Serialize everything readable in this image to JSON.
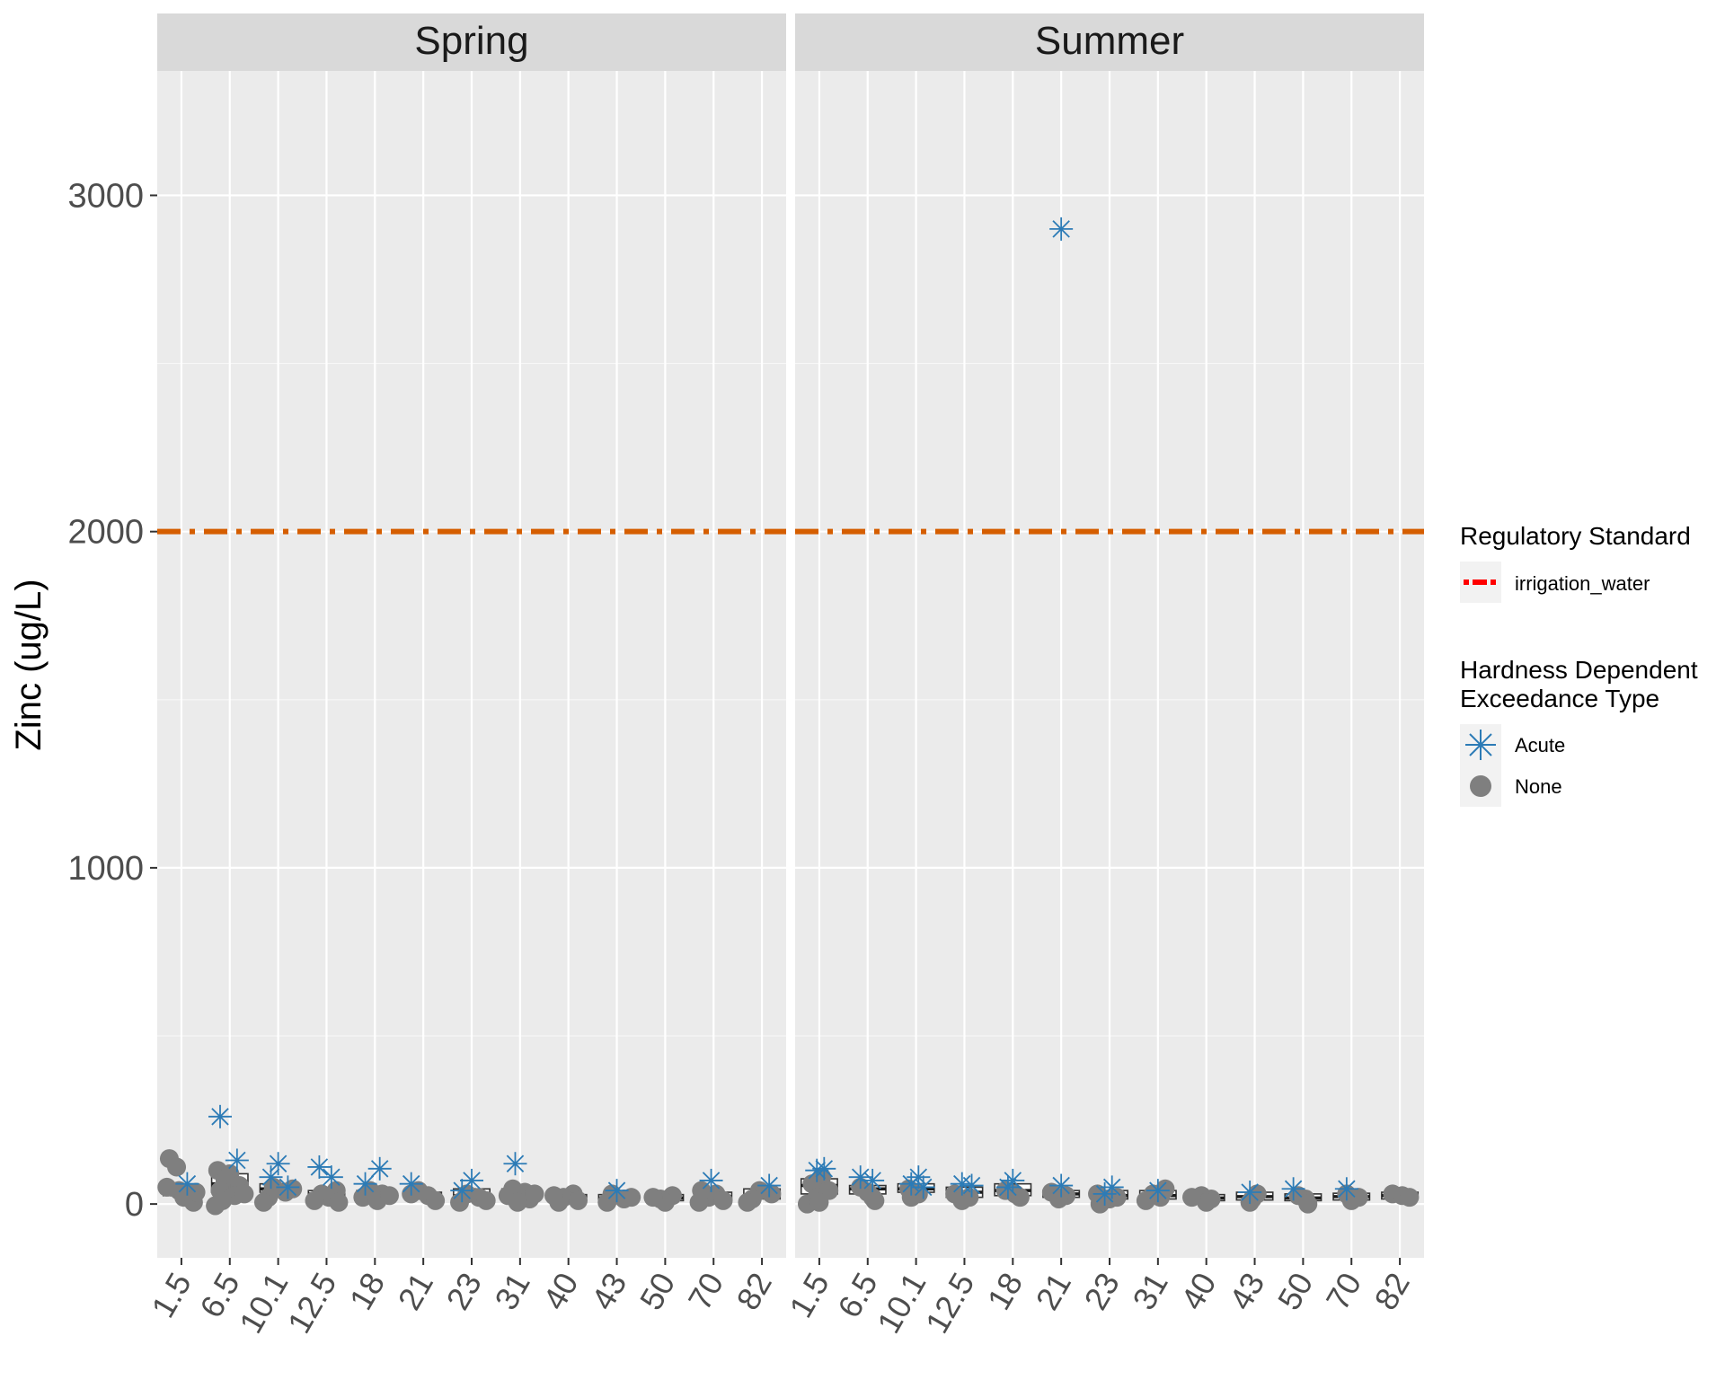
{
  "chart_data": {
    "type": "boxplot-jitter-faceted",
    "ylabel": "Zinc (ug/L)",
    "ylim": [
      -160,
      3370
    ],
    "yticks": [
      0,
      1000,
      2000,
      3000
    ],
    "categories": [
      "1.5",
      "6.5",
      "10.1",
      "12.5",
      "18",
      "21",
      "23",
      "31",
      "40",
      "43",
      "50",
      "70",
      "82"
    ],
    "reference_line": {
      "value": 2000,
      "name": "irrigation_water",
      "color": "#D55E00"
    },
    "colors": {
      "acute": "#2C7BB6",
      "none": "#7F7F7F",
      "panel_bg": "#EBEBEB",
      "strip_bg": "#D9D9D9",
      "grid": "#FFFFFF",
      "legend_line": "#FF0000"
    },
    "legend": {
      "reference_title": "Regulatory Standard",
      "reference_label": "irrigation_water",
      "type_title_line1": "Hardness Dependent",
      "type_title_line2": "Exceedance Type",
      "acute_label": "Acute",
      "none_label": "None"
    },
    "facets": [
      {
        "name": "Spring",
        "boxes": [
          {
            "cat": "1.5",
            "q1": 25,
            "median": 40,
            "q3": 55
          },
          {
            "cat": "6.5",
            "q1": 35,
            "median": 60,
            "q3": 90
          },
          {
            "cat": "10.1",
            "q1": 35,
            "median": 45,
            "q3": 60
          },
          {
            "cat": "12.5",
            "q1": 20,
            "median": 30,
            "q3": 40
          },
          {
            "cat": "18",
            "q1": 18,
            "median": 28,
            "q3": 40
          },
          {
            "cat": "21",
            "q1": 15,
            "median": 25,
            "q3": 35
          },
          {
            "cat": "23",
            "q1": 10,
            "median": 25,
            "q3": 45
          },
          {
            "cat": "31",
            "q1": 15,
            "median": 25,
            "q3": 45
          },
          {
            "cat": "40",
            "q1": 10,
            "median": 18,
            "q3": 28
          },
          {
            "cat": "43",
            "q1": 10,
            "median": 18,
            "q3": 28
          },
          {
            "cat": "50",
            "q1": 10,
            "median": 18,
            "q3": 28
          },
          {
            "cat": "70",
            "q1": 12,
            "median": 22,
            "q3": 35
          },
          {
            "cat": "82",
            "q1": 15,
            "median": 25,
            "q3": 45
          }
        ],
        "acute_points": [
          {
            "cat": "1.5",
            "y": 60,
            "dx": 0.12
          },
          {
            "cat": "6.5",
            "y": 260,
            "dx": -0.2
          },
          {
            "cat": "6.5",
            "y": 130,
            "dx": 0.15
          },
          {
            "cat": "10.1",
            "y": 120,
            "dx": 0.0
          },
          {
            "cat": "10.1",
            "y": 80,
            "dx": -0.15
          },
          {
            "cat": "10.1",
            "y": 50,
            "dx": 0.2
          },
          {
            "cat": "12.5",
            "y": 110,
            "dx": -0.15
          },
          {
            "cat": "12.5",
            "y": 80,
            "dx": 0.1
          },
          {
            "cat": "18",
            "y": 60,
            "dx": -0.2
          },
          {
            "cat": "18",
            "y": 105,
            "dx": 0.1
          },
          {
            "cat": "21",
            "y": 60,
            "dx": -0.25
          },
          {
            "cat": "23",
            "y": 70,
            "dx": 0.0
          },
          {
            "cat": "23",
            "y": 40,
            "dx": -0.2
          },
          {
            "cat": "31",
            "y": 120,
            "dx": -0.1
          },
          {
            "cat": "43",
            "y": 40,
            "dx": 0.0
          },
          {
            "cat": "70",
            "y": 70,
            "dx": -0.05
          },
          {
            "cat": "82",
            "y": 55,
            "dx": 0.15
          }
        ],
        "none_points": [
          {
            "cat": "1.5",
            "y": 135,
            "dx": -0.25
          },
          {
            "cat": "1.5",
            "y": 110,
            "dx": -0.1
          },
          {
            "cat": "1.5",
            "y": 50,
            "dx": -0.3
          },
          {
            "cat": "1.5",
            "y": 40,
            "dx": -0.05
          },
          {
            "cat": "1.5",
            "y": 30,
            "dx": 0.15
          },
          {
            "cat": "1.5",
            "y": 20,
            "dx": 0.05
          },
          {
            "cat": "1.5",
            "y": 5,
            "dx": 0.25
          },
          {
            "cat": "1.5",
            "y": 35,
            "dx": 0.3
          },
          {
            "cat": "6.5",
            "y": 100,
            "dx": -0.25
          },
          {
            "cat": "6.5",
            "y": 90,
            "dx": 0.0
          },
          {
            "cat": "6.5",
            "y": 70,
            "dx": -0.1
          },
          {
            "cat": "6.5",
            "y": 55,
            "dx": 0.2
          },
          {
            "cat": "6.5",
            "y": 40,
            "dx": -0.2
          },
          {
            "cat": "6.5",
            "y": 25,
            "dx": 0.1
          },
          {
            "cat": "6.5",
            "y": 10,
            "dx": -0.15
          },
          {
            "cat": "6.5",
            "y": -5,
            "dx": -0.3
          },
          {
            "cat": "6.5",
            "y": 30,
            "dx": 0.3
          },
          {
            "cat": "10.1",
            "y": 50,
            "dx": -0.1
          },
          {
            "cat": "10.1",
            "y": 35,
            "dx": 0.15
          },
          {
            "cat": "10.1",
            "y": 20,
            "dx": -0.2
          },
          {
            "cat": "10.1",
            "y": 5,
            "dx": -0.3
          },
          {
            "cat": "10.1",
            "y": 45,
            "dx": 0.3
          },
          {
            "cat": "12.5",
            "y": 40,
            "dx": 0.2
          },
          {
            "cat": "12.5",
            "y": 30,
            "dx": -0.1
          },
          {
            "cat": "12.5",
            "y": 20,
            "dx": 0.05
          },
          {
            "cat": "12.5",
            "y": 10,
            "dx": -0.25
          },
          {
            "cat": "12.5",
            "y": 5,
            "dx": 0.25
          },
          {
            "cat": "18",
            "y": 40,
            "dx": -0.1
          },
          {
            "cat": "18",
            "y": 30,
            "dx": 0.15
          },
          {
            "cat": "18",
            "y": 20,
            "dx": -0.25
          },
          {
            "cat": "18",
            "y": 10,
            "dx": 0.05
          },
          {
            "cat": "18",
            "y": 25,
            "dx": 0.3
          },
          {
            "cat": "21",
            "y": 40,
            "dx": -0.1
          },
          {
            "cat": "21",
            "y": 25,
            "dx": 0.1
          },
          {
            "cat": "21",
            "y": 10,
            "dx": 0.25
          },
          {
            "cat": "21",
            "y": 30,
            "dx": -0.25
          },
          {
            "cat": "23",
            "y": 30,
            "dx": -0.1
          },
          {
            "cat": "23",
            "y": 20,
            "dx": 0.15
          },
          {
            "cat": "23",
            "y": 5,
            "dx": -0.25
          },
          {
            "cat": "23",
            "y": 10,
            "dx": 0.3
          },
          {
            "cat": "31",
            "y": 45,
            "dx": -0.15
          },
          {
            "cat": "31",
            "y": 35,
            "dx": 0.1
          },
          {
            "cat": "31",
            "y": 25,
            "dx": -0.25
          },
          {
            "cat": "31",
            "y": 15,
            "dx": 0.2
          },
          {
            "cat": "31",
            "y": 5,
            "dx": -0.05
          },
          {
            "cat": "31",
            "y": 30,
            "dx": 0.3
          },
          {
            "cat": "40",
            "y": 30,
            "dx": 0.1
          },
          {
            "cat": "40",
            "y": 20,
            "dx": -0.1
          },
          {
            "cat": "40",
            "y": 10,
            "dx": 0.2
          },
          {
            "cat": "40",
            "y": 5,
            "dx": -0.2
          },
          {
            "cat": "40",
            "y": 25,
            "dx": -0.3
          },
          {
            "cat": "43",
            "y": 30,
            "dx": -0.1
          },
          {
            "cat": "43",
            "y": 15,
            "dx": 0.15
          },
          {
            "cat": "43",
            "y": 5,
            "dx": -0.2
          },
          {
            "cat": "43",
            "y": 20,
            "dx": 0.3
          },
          {
            "cat": "50",
            "y": 25,
            "dx": 0.15
          },
          {
            "cat": "50",
            "y": 15,
            "dx": -0.1
          },
          {
            "cat": "50",
            "y": 5,
            "dx": 0.0
          },
          {
            "cat": "50",
            "y": 20,
            "dx": -0.25
          },
          {
            "cat": "70",
            "y": 40,
            "dx": -0.25
          },
          {
            "cat": "70",
            "y": 30,
            "dx": 0.05
          },
          {
            "cat": "70",
            "y": 20,
            "dx": -0.1
          },
          {
            "cat": "70",
            "y": 10,
            "dx": 0.2
          },
          {
            "cat": "70",
            "y": 5,
            "dx": -0.3
          },
          {
            "cat": "82",
            "y": 40,
            "dx": -0.05
          },
          {
            "cat": "82",
            "y": 30,
            "dx": 0.2
          },
          {
            "cat": "82",
            "y": 15,
            "dx": -0.2
          },
          {
            "cat": "82",
            "y": 5,
            "dx": -0.3
          }
        ]
      },
      {
        "name": "Summer",
        "boxes": [
          {
            "cat": "1.5",
            "q1": 30,
            "median": 55,
            "q3": 75
          },
          {
            "cat": "6.5",
            "q1": 30,
            "median": 45,
            "q3": 55
          },
          {
            "cat": "10.1",
            "q1": 35,
            "median": 45,
            "q3": 60
          },
          {
            "cat": "12.5",
            "q1": 20,
            "median": 35,
            "q3": 50
          },
          {
            "cat": "18",
            "q1": 25,
            "median": 40,
            "q3": 60
          },
          {
            "cat": "21",
            "q1": 20,
            "median": 30,
            "q3": 40
          },
          {
            "cat": "23",
            "q1": 15,
            "median": 25,
            "q3": 40
          },
          {
            "cat": "31",
            "q1": 15,
            "median": 25,
            "q3": 40
          },
          {
            "cat": "40",
            "q1": 10,
            "median": 18,
            "q3": 28
          },
          {
            "cat": "43",
            "q1": 12,
            "median": 22,
            "q3": 35
          },
          {
            "cat": "50",
            "q1": 10,
            "median": 18,
            "q3": 30
          },
          {
            "cat": "70",
            "q1": 12,
            "median": 22,
            "q3": 32
          },
          {
            "cat": "82",
            "q1": 15,
            "median": 25,
            "q3": 35
          }
        ],
        "acute_points": [
          {
            "cat": "1.5",
            "y": 100,
            "dx": -0.05
          },
          {
            "cat": "1.5",
            "y": 105,
            "dx": 0.1
          },
          {
            "cat": "6.5",
            "y": 80,
            "dx": -0.15
          },
          {
            "cat": "6.5",
            "y": 70,
            "dx": 0.1
          },
          {
            "cat": "10.1",
            "y": 80,
            "dx": 0.05
          },
          {
            "cat": "10.1",
            "y": 60,
            "dx": -0.1
          },
          {
            "cat": "10.1",
            "y": 50,
            "dx": 0.15
          },
          {
            "cat": "12.5",
            "y": 60,
            "dx": -0.05
          },
          {
            "cat": "12.5",
            "y": 55,
            "dx": 0.15
          },
          {
            "cat": "18",
            "y": 70,
            "dx": 0.0
          },
          {
            "cat": "18",
            "y": 50,
            "dx": -0.1
          },
          {
            "cat": "21",
            "y": 2900,
            "dx": 0.0
          },
          {
            "cat": "21",
            "y": 55,
            "dx": 0.0
          },
          {
            "cat": "23",
            "y": 50,
            "dx": 0.05
          },
          {
            "cat": "23",
            "y": 30,
            "dx": -0.1
          },
          {
            "cat": "31",
            "y": 40,
            "dx": 0.0
          },
          {
            "cat": "43",
            "y": 35,
            "dx": -0.1
          },
          {
            "cat": "50",
            "y": 45,
            "dx": -0.2
          },
          {
            "cat": "70",
            "y": 45,
            "dx": -0.1
          }
        ],
        "none_points": [
          {
            "cat": "1.5",
            "y": 80,
            "dx": 0.05
          },
          {
            "cat": "1.5",
            "y": 60,
            "dx": -0.15
          },
          {
            "cat": "1.5",
            "y": 40,
            "dx": 0.2
          },
          {
            "cat": "1.5",
            "y": 20,
            "dx": -0.05
          },
          {
            "cat": "1.5",
            "y": 0,
            "dx": -0.25
          },
          {
            "cat": "1.5",
            "y": 5,
            "dx": 0.0
          },
          {
            "cat": "6.5",
            "y": 50,
            "dx": -0.15
          },
          {
            "cat": "6.5",
            "y": 35,
            "dx": 0.0
          },
          {
            "cat": "6.5",
            "y": 20,
            "dx": 0.1
          },
          {
            "cat": "6.5",
            "y": 10,
            "dx": 0.15
          },
          {
            "cat": "10.1",
            "y": 45,
            "dx": -0.15
          },
          {
            "cat": "10.1",
            "y": 30,
            "dx": 0.05
          },
          {
            "cat": "10.1",
            "y": 20,
            "dx": -0.1
          },
          {
            "cat": "12.5",
            "y": 30,
            "dx": -0.2
          },
          {
            "cat": "12.5",
            "y": 20,
            "dx": 0.1
          },
          {
            "cat": "12.5",
            "y": 10,
            "dx": -0.05
          },
          {
            "cat": "18",
            "y": 40,
            "dx": -0.15
          },
          {
            "cat": "18",
            "y": 30,
            "dx": 0.05
          },
          {
            "cat": "18",
            "y": 20,
            "dx": 0.15
          },
          {
            "cat": "21",
            "y": 35,
            "dx": -0.2
          },
          {
            "cat": "21",
            "y": 25,
            "dx": 0.1
          },
          {
            "cat": "21",
            "y": 15,
            "dx": -0.05
          },
          {
            "cat": "23",
            "y": 30,
            "dx": -0.25
          },
          {
            "cat": "23",
            "y": 15,
            "dx": 0.0
          },
          {
            "cat": "23",
            "y": 0,
            "dx": -0.2
          },
          {
            "cat": "23",
            "y": 20,
            "dx": 0.15
          },
          {
            "cat": "31",
            "y": 45,
            "dx": 0.15
          },
          {
            "cat": "31",
            "y": 30,
            "dx": -0.1
          },
          {
            "cat": "31",
            "y": 20,
            "dx": 0.05
          },
          {
            "cat": "31",
            "y": 10,
            "dx": -0.25
          },
          {
            "cat": "40",
            "y": 25,
            "dx": -0.1
          },
          {
            "cat": "40",
            "y": 15,
            "dx": 0.1
          },
          {
            "cat": "40",
            "y": 5,
            "dx": 0.0
          },
          {
            "cat": "40",
            "y": 20,
            "dx": -0.3
          },
          {
            "cat": "43",
            "y": 30,
            "dx": 0.05
          },
          {
            "cat": "43",
            "y": 15,
            "dx": -0.05
          },
          {
            "cat": "43",
            "y": 5,
            "dx": -0.1
          },
          {
            "cat": "50",
            "y": 25,
            "dx": -0.1
          },
          {
            "cat": "50",
            "y": 15,
            "dx": 0.05
          },
          {
            "cat": "50",
            "y": 0,
            "dx": 0.1
          },
          {
            "cat": "70",
            "y": 30,
            "dx": -0.1
          },
          {
            "cat": "70",
            "y": 20,
            "dx": 0.15
          },
          {
            "cat": "70",
            "y": 10,
            "dx": 0.0
          },
          {
            "cat": "82",
            "y": 30,
            "dx": -0.15
          },
          {
            "cat": "82",
            "y": 25,
            "dx": 0.05
          },
          {
            "cat": "82",
            "y": 20,
            "dx": 0.2
          }
        ]
      }
    ]
  }
}
